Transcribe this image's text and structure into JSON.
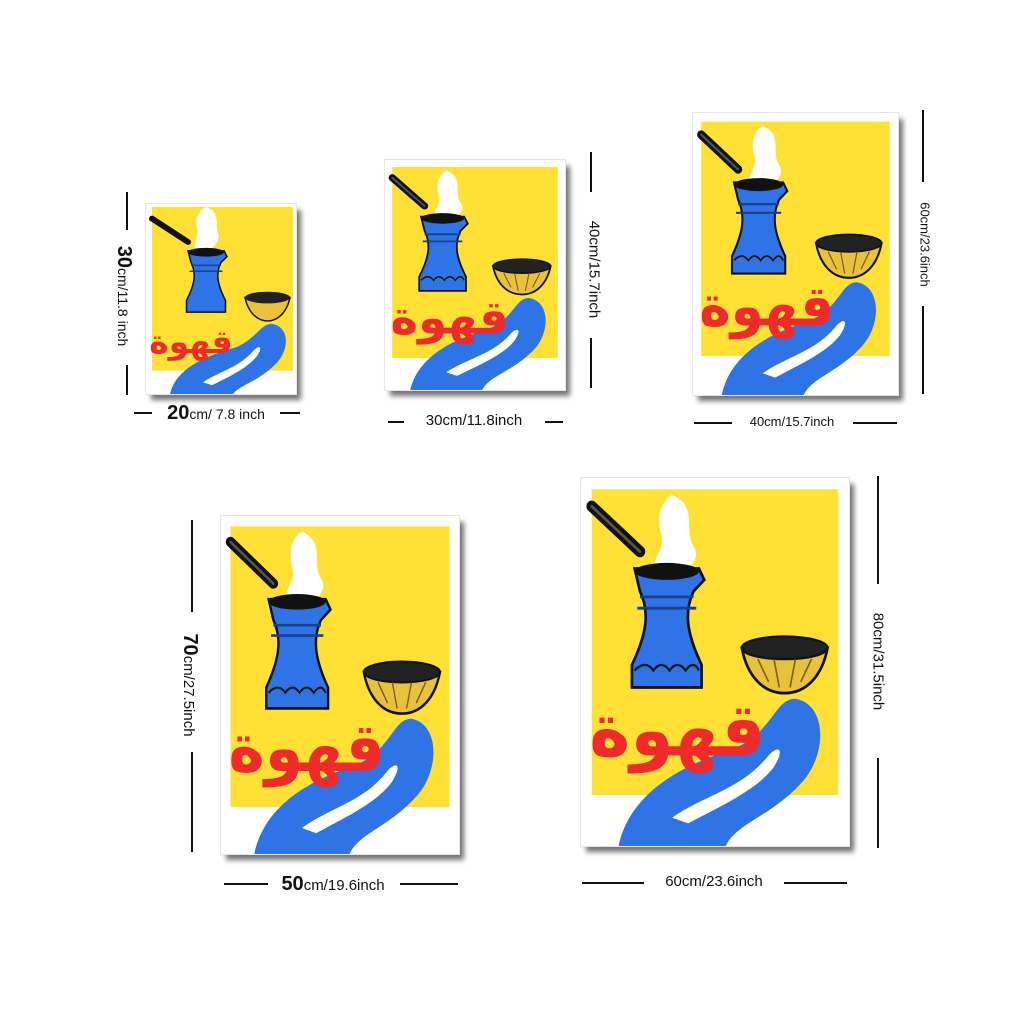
{
  "artwork": {
    "title_arabic": "قهوة",
    "colors": {
      "background": "#ffe135",
      "paper": "#ffffff",
      "pot_blue": "#2e74e6",
      "pot_dark": "#1a3f8c",
      "handle": "#111111",
      "cup_gold": "#e8c23a",
      "text_red": "#ee2a2a",
      "steam": "#ffffff"
    }
  },
  "sizes": [
    {
      "id": "20x30",
      "width_value": "20",
      "width_unit": "cm/ 7.8 inch",
      "height_value": "30",
      "height_unit": "cm/11.8 inch"
    },
    {
      "id": "30x40",
      "width_text": "30cm/11.8inch",
      "height_text": "40cm/15.7inch"
    },
    {
      "id": "40x60",
      "width_text": "40cm/15.7inch",
      "height_text": "60cm/23.6inch"
    },
    {
      "id": "50x70",
      "width_value": "50",
      "width_unit": "cm/19.6inch",
      "height_value": "70",
      "height_unit": "cm/27.5inch"
    },
    {
      "id": "60x80",
      "width_text": "60cm/23.6inch",
      "height_text": "80cm/31.5inch"
    }
  ]
}
